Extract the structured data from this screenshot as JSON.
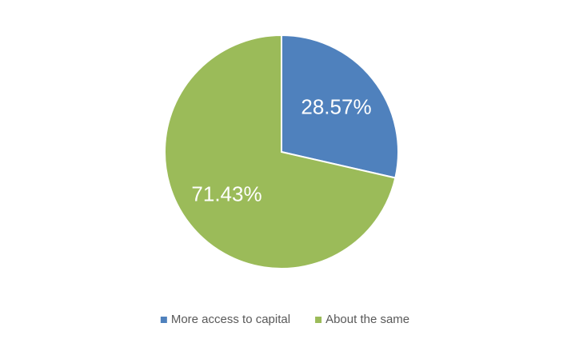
{
  "chart_data": {
    "type": "pie",
    "categories": [
      "More access to capital",
      "About the same"
    ],
    "values": [
      28.57,
      71.43
    ],
    "value_labels": [
      "28.57%",
      "71.43%"
    ],
    "colors": [
      "#4f81bd",
      "#9bbb59"
    ],
    "legend": "bottom"
  }
}
